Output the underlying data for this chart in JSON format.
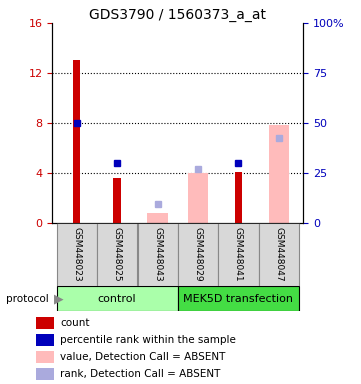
{
  "title": "GDS3790 / 1560373_a_at",
  "samples": [
    "GSM448023",
    "GSM448025",
    "GSM448043",
    "GSM448029",
    "GSM448041",
    "GSM448047"
  ],
  "red_bars": [
    13.0,
    3.6,
    0.0,
    0.0,
    4.1,
    0.0
  ],
  "blue_squares_left": [
    8.0,
    4.8,
    0.0,
    0.0,
    4.8,
    0.0
  ],
  "pink_bars": [
    0.0,
    0.0,
    0.8,
    4.0,
    0.0,
    7.8
  ],
  "lightblue_squares_left": [
    0.0,
    0.0,
    1.5,
    4.3,
    0.0,
    6.8
  ],
  "ylim_left": [
    0,
    16
  ],
  "ylim_right": [
    0,
    100
  ],
  "yticks_left": [
    0,
    4,
    8,
    12,
    16
  ],
  "yticks_right": [
    0,
    25,
    50,
    75,
    100
  ],
  "ytick_labels_right": [
    "0",
    "25",
    "50",
    "75",
    "100%"
  ],
  "red_color": "#cc0000",
  "blue_color": "#0000bb",
  "pink_color": "#ffbbbb",
  "lightblue_color": "#aaaadd",
  "legend_items": [
    {
      "label": "count",
      "color": "#cc0000"
    },
    {
      "label": "percentile rank within the sample",
      "color": "#0000bb"
    },
    {
      "label": "value, Detection Call = ABSENT",
      "color": "#ffbbbb"
    },
    {
      "label": "rank, Detection Call = ABSENT",
      "color": "#aaaadd"
    }
  ]
}
